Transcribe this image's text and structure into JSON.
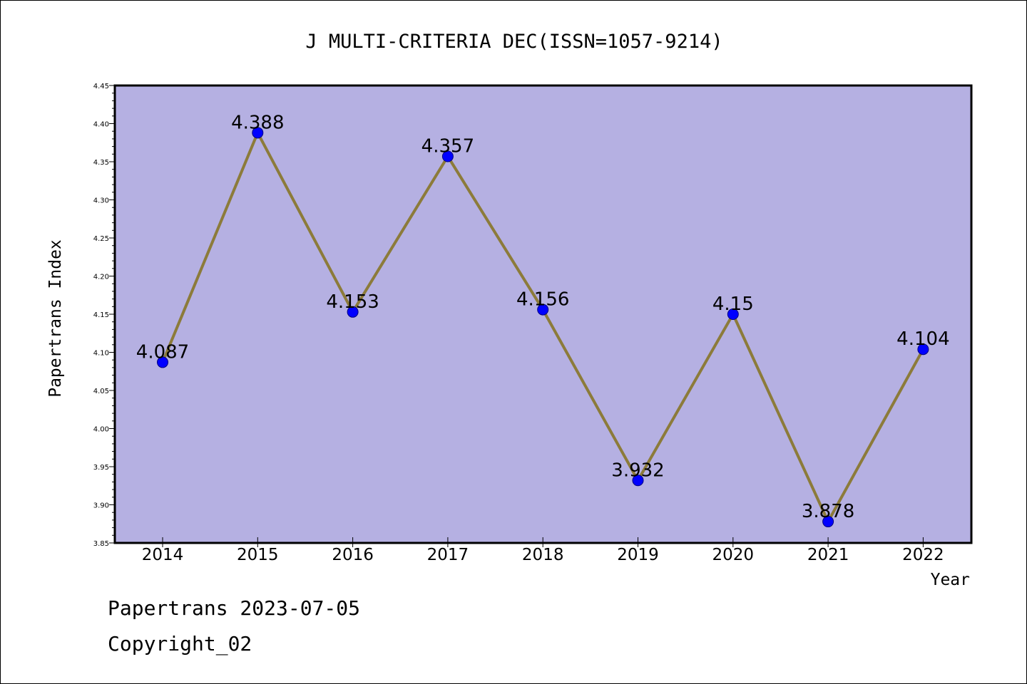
{
  "chart_data": {
    "type": "line",
    "title": "J MULTI-CRITERIA DEC(ISSN=1057-9214)",
    "xlabel": "Year",
    "ylabel": "Papertrans Index",
    "categories": [
      "2014",
      "2015",
      "2016",
      "2017",
      "2018",
      "2019",
      "2020",
      "2021",
      "2022"
    ],
    "values": [
      4.087,
      4.388,
      4.153,
      4.357,
      4.156,
      3.932,
      4.15,
      3.878,
      4.104
    ],
    "data_labels": [
      "4.087",
      "4.388",
      "4.153",
      "4.357",
      "4.156",
      "3.932",
      "4.15",
      "3.878",
      "4.104"
    ],
    "ylim": [
      3.85,
      4.45
    ],
    "yticks": [
      "3.85",
      "3.90",
      "3.95",
      "4.00",
      "4.05",
      "4.10",
      "4.15",
      "4.20",
      "4.25",
      "4.30",
      "4.35",
      "4.40",
      "4.45"
    ],
    "grid": false,
    "colors": {
      "plot_background": "#b5b0e2",
      "line": "#8c7b3a",
      "marker_fill": "#0000ff",
      "marker_edge": "#000080"
    }
  },
  "footer": {
    "date_line": "Papertrans 2023-07-05",
    "copyright": "Copyright_02"
  }
}
